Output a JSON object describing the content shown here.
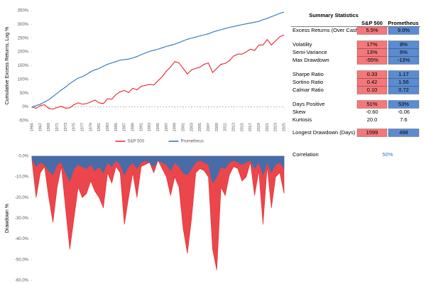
{
  "chart_data": [
    {
      "type": "line",
      "y_label": "Cumulative Excess Returns, Log %",
      "x": [
        1965,
        1966,
        1967,
        1968,
        1969,
        1970,
        1971,
        1972,
        1973,
        1974,
        1975,
        1976,
        1977,
        1978,
        1979,
        1980,
        1981,
        1982,
        1983,
        1984,
        1985,
        1986,
        1987,
        1988,
        1989,
        1990,
        1991,
        1992,
        1993,
        1994,
        1995,
        1996,
        1997,
        1998,
        1999,
        2000,
        2001,
        2002,
        2003,
        2004,
        2005,
        2006,
        2007,
        2008,
        2009,
        2010,
        2011,
        2012,
        2013,
        2014,
        2015,
        2016,
        2017,
        2018,
        2019,
        2020,
        2021,
        2022,
        2023,
        2024,
        2025
      ],
      "series": [
        {
          "name": "S&P 500",
          "color": "#e8262b",
          "values": [
            0,
            -5,
            5,
            8,
            -5,
            -8,
            -2,
            2,
            -5,
            -3,
            8,
            15,
            10,
            12,
            18,
            25,
            15,
            12,
            30,
            28,
            45,
            55,
            60,
            52,
            68,
            62,
            75,
            78,
            82,
            80,
            95,
            110,
            130,
            145,
            165,
            160,
            140,
            120,
            135,
            140,
            145,
            155,
            160,
            125,
            140,
            155,
            158,
            168,
            185,
            192,
            192,
            200,
            210,
            205,
            225,
            225,
            245,
            225,
            240,
            255,
            262
          ]
        },
        {
          "name": "Prometheus",
          "color": "#2a73b8",
          "values": [
            0,
            5,
            10,
            18,
            26,
            38,
            50,
            62,
            72,
            85,
            95,
            105,
            110,
            118,
            128,
            135,
            140,
            148,
            155,
            160,
            165,
            170,
            172,
            174,
            178,
            183,
            190,
            196,
            202,
            206,
            210,
            215,
            220,
            224,
            228,
            234,
            240,
            246,
            250,
            254,
            258,
            262,
            266,
            272,
            277,
            281,
            285,
            289,
            292,
            296,
            299,
            302,
            305,
            308,
            311,
            317,
            322,
            328,
            334,
            340,
            345
          ]
        }
      ],
      "xlim": [
        1965,
        2025
      ],
      "xticks": [
        1965,
        1967,
        1969,
        1971,
        1973,
        1975,
        1977,
        1979,
        1981,
        1983,
        1985,
        1987,
        1989,
        1991,
        1993,
        1995,
        1997,
        1999,
        2001,
        2003,
        2005,
        2007,
        2009,
        2011,
        2013,
        2015,
        2017,
        2019,
        2021,
        2023,
        2025
      ],
      "ylim": [
        -50,
        350
      ],
      "yticks": [
        {
          "value": -50,
          "label": "-50%"
        },
        {
          "value": 0,
          "label": "0%"
        },
        {
          "value": 50,
          "label": "50%"
        },
        {
          "value": 100,
          "label": "100%"
        },
        {
          "value": 150,
          "label": "150%"
        },
        {
          "value": 200,
          "label": "200%"
        },
        {
          "value": 250,
          "label": "250%"
        },
        {
          "value": 300,
          "label": "300%"
        },
        {
          "value": 350,
          "label": "350%"
        }
      ],
      "legend": "bottom"
    },
    {
      "type": "area",
      "y_label": "Drawdown %",
      "x": [
        1965,
        1966,
        1967,
        1968,
        1969,
        1970,
        1971,
        1972,
        1973,
        1974,
        1975,
        1976,
        1977,
        1978,
        1979,
        1980,
        1981,
        1982,
        1983,
        1984,
        1985,
        1986,
        1987,
        1988,
        1989,
        1990,
        1991,
        1992,
        1993,
        1994,
        1995,
        1996,
        1997,
        1998,
        1999,
        2000,
        2001,
        2002,
        2003,
        2004,
        2005,
        2006,
        2007,
        2008,
        2009,
        2010,
        2011,
        2012,
        2013,
        2014,
        2015,
        2016,
        2017,
        2018,
        2019,
        2020,
        2021,
        2022,
        2023,
        2024,
        2025
      ],
      "series": [
        {
          "color": "#e8262b",
          "values": [
            -2,
            -20,
            -8,
            -5,
            -20,
            -32,
            -15,
            -5,
            -25,
            -45,
            -30,
            -15,
            -20,
            -18,
            -12,
            -17,
            -20,
            -25,
            -8,
            -13,
            -5,
            -8,
            -33,
            -20,
            -8,
            -20,
            -5,
            -4,
            -3,
            -8,
            -2,
            -6,
            -10,
            -19,
            -10,
            -15,
            -35,
            -47,
            -30,
            -8,
            -6,
            -7,
            -10,
            -45,
            -55,
            -15,
            -19,
            -9,
            -5,
            -6,
            -12,
            -10,
            -3,
            -19,
            -7,
            -33,
            -5,
            -25,
            -10,
            -8,
            -18
          ]
        },
        {
          "color": "#2a73b8",
          "values": [
            -1,
            -5,
            -3,
            -4,
            -7,
            -9,
            -4,
            -3,
            -8,
            -12,
            -6,
            -4,
            -5,
            -6,
            -4,
            -7,
            -5,
            -8,
            -3,
            -5,
            -2,
            -4,
            -9,
            -5,
            -3,
            -6,
            -3,
            -2,
            -3,
            -5,
            -2,
            -3,
            -4,
            -7,
            -3,
            -5,
            -8,
            -9,
            -6,
            -3,
            -2,
            -3,
            -4,
            -13,
            -10,
            -5,
            -6,
            -3,
            -2,
            -3,
            -4,
            -3,
            -2,
            -6,
            -3,
            -9,
            -3,
            -8,
            -4,
            -3,
            -6
          ]
        }
      ],
      "xlim": [
        1965,
        2025
      ],
      "ylim": [
        -60,
        0
      ],
      "yticks": [
        {
          "value": 0,
          "label": "0.0%"
        },
        {
          "value": -10,
          "label": "-10.0%"
        },
        {
          "value": -20,
          "label": "-20.0%"
        },
        {
          "value": -30,
          "label": "-30.0%"
        },
        {
          "value": -40,
          "label": "-40.0%"
        },
        {
          "value": -50,
          "label": "-50.0%"
        },
        {
          "value": -60,
          "label": "-60.0%"
        }
      ]
    }
  ],
  "summary_table": {
    "title": "Summary Statistics",
    "columns": [
      "S&P 500",
      "Prometheus"
    ],
    "colors": [
      "#f4777a",
      "#5b8bd0"
    ],
    "groups": [
      [
        {
          "label": "Excess Returns (Over Cash)",
          "values": [
            "5.5%",
            "9.0%"
          ],
          "highlight": true
        }
      ],
      [
        {
          "label": "Volatility",
          "values": [
            "17%",
            "8%"
          ],
          "highlight": true
        },
        {
          "label": "Semi-Variance",
          "values": [
            "13%",
            "6%"
          ],
          "highlight": true
        },
        {
          "label": "Max Drawdown",
          "values": [
            "-55%",
            "-13%"
          ],
          "highlight": true
        }
      ],
      [
        {
          "label": "Sharpe Ratio",
          "values": [
            "0.33",
            "1.17"
          ],
          "highlight": true
        },
        {
          "label": "Sortino Ratio",
          "values": [
            "0.42",
            "1.56"
          ],
          "highlight": true
        },
        {
          "label": "Calmar Ratio",
          "values": [
            "0.10",
            "0.72"
          ],
          "highlight": true
        }
      ],
      [
        {
          "label": "Days Positive",
          "values": [
            "51%",
            "53%"
          ],
          "highlight": true
        },
        {
          "label": "Skew",
          "values": [
            "-0.60",
            "-0.06"
          ],
          "highlight": false
        },
        {
          "label": "Kurtosis",
          "values": [
            "20.0",
            "7.6"
          ],
          "highlight": false
        }
      ],
      [
        {
          "label": "Longest Drawdown (Days)",
          "values": [
            "1599",
            "498"
          ],
          "highlight": true
        }
      ]
    ],
    "correlation": {
      "label": "Correlation",
      "value": "50%"
    }
  }
}
